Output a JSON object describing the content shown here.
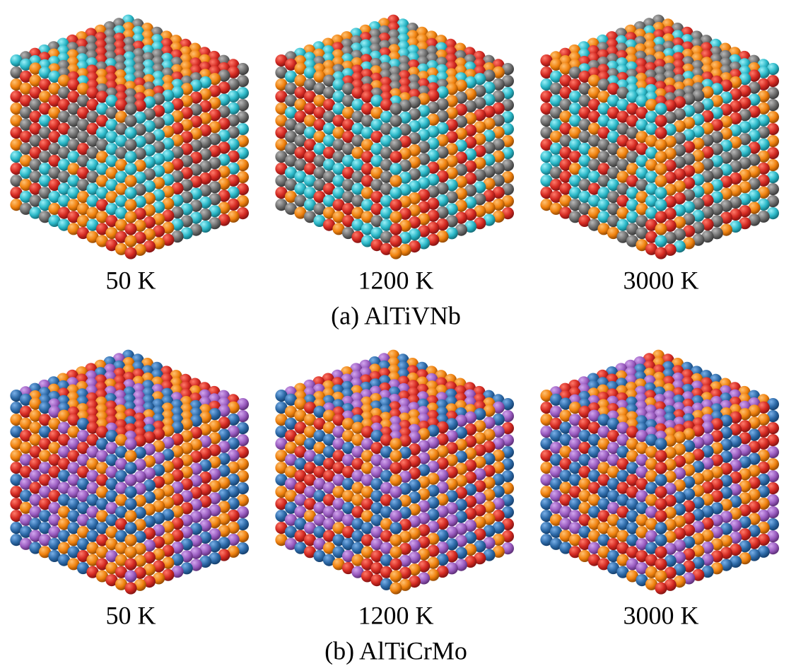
{
  "figures": [
    {
      "caption": "(a) AlTiVNb",
      "panels": [
        {
          "label": "50 K"
        },
        {
          "label": "1200 K"
        },
        {
          "label": "3000 K"
        }
      ]
    },
    {
      "caption": "(b) AlTiCrMo",
      "panels": [
        {
          "label": "50 K"
        },
        {
          "label": "1200 K"
        },
        {
          "label": "3000 K"
        }
      ]
    }
  ]
}
